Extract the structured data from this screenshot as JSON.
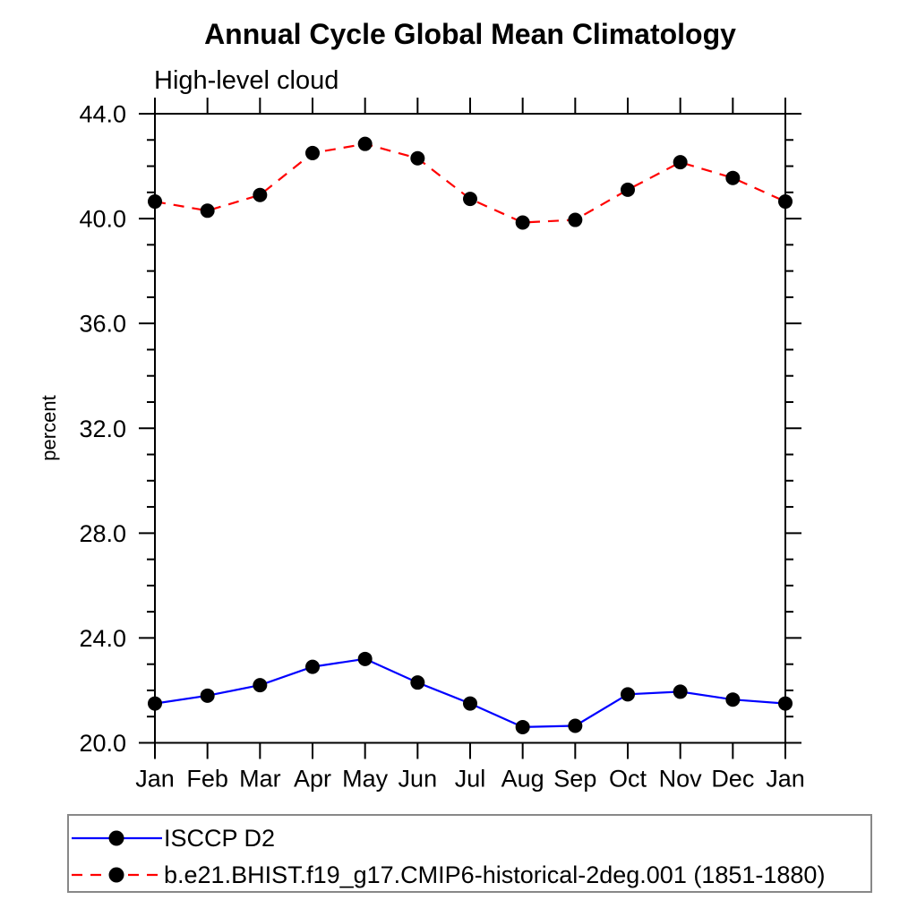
{
  "chart": {
    "title": "Annual Cycle Global Mean Climatology",
    "subtitle": "High-level cloud",
    "ylabel": "percent"
  },
  "chart_data": {
    "type": "line",
    "title": "Annual Cycle Global Mean Climatology",
    "subtitle": "High-level cloud",
    "xlabel": "",
    "ylabel": "percent",
    "categories": [
      "Jan",
      "Feb",
      "Mar",
      "Apr",
      "May",
      "Jun",
      "Jul",
      "Aug",
      "Sep",
      "Oct",
      "Nov",
      "Dec",
      "Jan"
    ],
    "series": [
      {
        "name": "ISCCP D2",
        "color": "#0000ff",
        "line_style": "solid",
        "marker": "filled-circle",
        "marker_color": "#000000",
        "values": [
          21.5,
          21.8,
          22.2,
          22.9,
          23.2,
          22.3,
          21.5,
          20.6,
          20.65,
          21.85,
          21.95,
          21.65,
          21.5
        ]
      },
      {
        "name": "b.e21.BHIST.f19_g17.CMIP6-historical-2deg.001 (1851-1880)",
        "color": "#ff0000",
        "line_style": "dashed",
        "marker": "filled-circle",
        "marker_color": "#000000",
        "values": [
          40.65,
          40.3,
          40.9,
          42.5,
          42.85,
          42.3,
          40.75,
          39.85,
          39.95,
          41.1,
          42.15,
          41.55,
          40.65
        ]
      }
    ],
    "ylim": [
      20.0,
      44.0
    ],
    "ytick_major": [
      20.0,
      24.0,
      28.0,
      32.0,
      36.0,
      40.0,
      44.0
    ],
    "ytick_minor_step": 1.0,
    "ytick_label_format": "one-decimal",
    "grid": false,
    "frame": "box with outward ticks on all four sides",
    "legend_position": "bottom-left boxed",
    "axis_color": "#000000",
    "legend_border_color": "#888888"
  }
}
